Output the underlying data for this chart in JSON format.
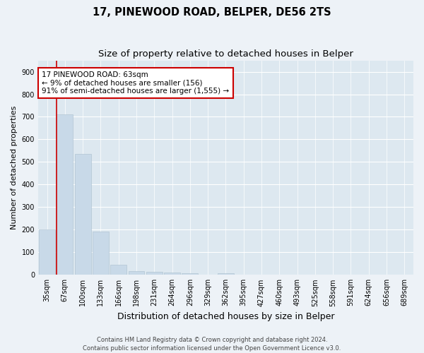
{
  "title": "17, PINEWOOD ROAD, BELPER, DE56 2TS",
  "subtitle": "Size of property relative to detached houses in Belper",
  "xlabel": "Distribution of detached houses by size in Belper",
  "ylabel": "Number of detached properties",
  "categories": [
    "35sqm",
    "67sqm",
    "100sqm",
    "133sqm",
    "166sqm",
    "198sqm",
    "231sqm",
    "264sqm",
    "296sqm",
    "329sqm",
    "362sqm",
    "395sqm",
    "427sqm",
    "460sqm",
    "493sqm",
    "525sqm",
    "558sqm",
    "591sqm",
    "624sqm",
    "656sqm",
    "689sqm"
  ],
  "values": [
    200,
    710,
    535,
    192,
    44,
    16,
    12,
    10,
    8,
    0,
    7,
    0,
    0,
    0,
    0,
    0,
    0,
    0,
    0,
    0,
    0
  ],
  "bar_color": "#c8d9e8",
  "bar_edge_color": "#aabfce",
  "vline_color": "#cc0000",
  "annotation_text": "17 PINEWOOD ROAD: 63sqm\n← 9% of detached houses are smaller (156)\n91% of semi-detached houses are larger (1,555) →",
  "annotation_box_color": "#ffffff",
  "annotation_box_edge": "#cc0000",
  "ylim": [
    0,
    950
  ],
  "yticks": [
    0,
    100,
    200,
    300,
    400,
    500,
    600,
    700,
    800,
    900
  ],
  "background_color": "#dde8f0",
  "fig_background_color": "#edf2f7",
  "footer": "Contains HM Land Registry data © Crown copyright and database right 2024.\nContains public sector information licensed under the Open Government Licence v3.0.",
  "title_fontsize": 10.5,
  "subtitle_fontsize": 9.5,
  "xlabel_fontsize": 9,
  "ylabel_fontsize": 8,
  "tick_fontsize": 7,
  "footer_fontsize": 6,
  "annotation_fontsize": 7.5
}
